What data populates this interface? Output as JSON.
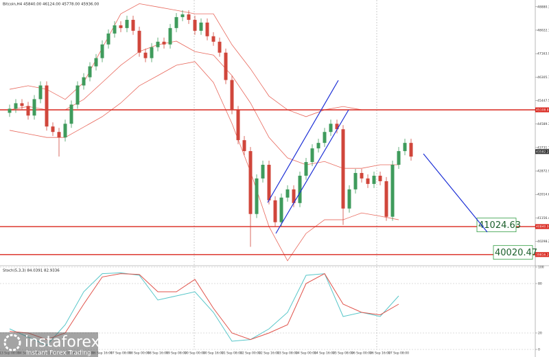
{
  "chart_data": [
    {
      "type": "candlestick",
      "title": "Bitcoin,H4 45840.00 46124.00 45778.00 45936.00",
      "categories": [
        "13 Sep 08:00",
        null,
        null,
        "14 Sep 00:00",
        null,
        null,
        "14 Sep 16:00",
        null,
        null,
        "15 Sep 08:00",
        null,
        null,
        "16 Sep 00:00",
        null,
        null,
        "16 Sep 16:00",
        null,
        null,
        "17 Sep 08:00",
        null,
        null,
        "18 Sep 00:00",
        null,
        null,
        "18 Sep 16:00",
        null,
        null,
        "19 Sep 08:00",
        null,
        null,
        "20 Sep 00:00",
        null,
        null,
        "20 Sep 16:00",
        null,
        null,
        "21 Sep 08:00",
        null,
        null,
        "22 Sep 00:00",
        null,
        null,
        "22 Sep 16:00",
        null,
        null,
        "23 Sep 08:00",
        null,
        null,
        "24 Sep 00:00",
        null,
        null,
        "24 Sep 16:00",
        null,
        null,
        "25 Sep 08:00",
        null,
        null,
        "26 Sep 00:00",
        null,
        null,
        "26 Sep 16:00",
        null,
        null,
        "27 Sep 08:00",
        null,
        null
      ],
      "open": [
        45000,
        45150,
        45350,
        45250,
        44900,
        45500,
        46000,
        44500,
        44300,
        44100,
        44600,
        45300,
        46000,
        46300,
        46700,
        47000,
        47500,
        47900,
        48200,
        48100,
        48400,
        48000,
        47200,
        47000,
        47400,
        47600,
        47500,
        48100,
        48500,
        48600,
        48400,
        48000,
        48300,
        47800,
        47600,
        47200,
        46200,
        45100,
        44000,
        43600,
        41300,
        42600,
        43100,
        41800,
        41000,
        41900,
        42200,
        41700,
        42700,
        43200,
        43700,
        43900,
        44300,
        44600,
        44400,
        41500,
        42200,
        42800,
        42600,
        42400,
        42700,
        42500,
        41200,
        43100,
        43600,
        43900
      ],
      "high": [
        45300,
        45500,
        45500,
        45400,
        45650,
        46150,
        46150,
        44650,
        44450,
        44750,
        45450,
        46150,
        46450,
        46850,
        47150,
        47650,
        48050,
        48350,
        48350,
        48550,
        48550,
        48150,
        47350,
        47550,
        47750,
        47750,
        48250,
        48650,
        48750,
        48750,
        48550,
        48450,
        48450,
        47950,
        47750,
        47350,
        46350,
        45250,
        44150,
        43750,
        42750,
        43250,
        43250,
        41950,
        42050,
        42350,
        42350,
        42850,
        43350,
        43850,
        44050,
        44450,
        44750,
        44750,
        44550,
        42350,
        42950,
        42950,
        42750,
        42850,
        42850,
        42650,
        43250,
        43750,
        44050,
        44050
      ],
      "low": [
        44850,
        45000,
        45100,
        44750,
        44750,
        45350,
        44350,
        44150,
        43400,
        43950,
        44450,
        45150,
        45850,
        46150,
        46550,
        46850,
        47350,
        47750,
        47950,
        47950,
        47850,
        47050,
        46850,
        46850,
        47250,
        47350,
        47350,
        47950,
        48350,
        48250,
        47850,
        47850,
        47650,
        47450,
        47050,
        46050,
        44950,
        43850,
        43450,
        40100,
        41150,
        42450,
        41650,
        40850,
        40850,
        41750,
        41550,
        41550,
        42550,
        43050,
        43550,
        43750,
        44150,
        44250,
        40900,
        41350,
        42050,
        42450,
        42250,
        42250,
        42350,
        41050,
        41050,
        42950,
        43450,
        43250
      ],
      "close": [
        45150,
        45350,
        45250,
        44900,
        45500,
        46000,
        44500,
        44300,
        44100,
        44600,
        45300,
        46000,
        46300,
        46700,
        47000,
        47500,
        47900,
        48200,
        48100,
        48400,
        48000,
        47200,
        47000,
        47400,
        47600,
        47500,
        48100,
        48500,
        48600,
        48400,
        48000,
        48300,
        47800,
        47600,
        47200,
        46200,
        45100,
        44000,
        43600,
        41300,
        42600,
        43100,
        41800,
        41000,
        41900,
        42200,
        41700,
        42700,
        43200,
        43700,
        43900,
        44300,
        44600,
        44400,
        41500,
        42200,
        42800,
        42600,
        42400,
        42700,
        42500,
        41200,
        43100,
        43600,
        43900,
        43400
      ],
      "up_color": "#3f9b5c",
      "down_color": "#d0463b",
      "ylim": [
        39460,
        49000
      ],
      "yticks": [
        {
          "value": 48880.37,
          "label": "48880.37"
        },
        {
          "value": 48022.16,
          "label": "48022.16"
        },
        {
          "value": 47163.95,
          "label": "47163.95"
        },
        {
          "value": 46305.74,
          "label": "46305.74"
        },
        {
          "value": 45447.53,
          "label": "45447.53"
        },
        {
          "value": 44589.32,
          "label": "44589.32"
        },
        {
          "value": 43731.11,
          "label": "43731.11"
        },
        {
          "value": 42872.9,
          "label": "42872.90"
        },
        {
          "value": 42014.69,
          "label": "42014.69"
        },
        {
          "value": 41156.48,
          "label": "41156.48"
        },
        {
          "value": 40298.27,
          "label": "40298.27"
        }
      ],
      "overlay_x": [
        0,
        3,
        6,
        9,
        12,
        15,
        18,
        21,
        24,
        27,
        30,
        33,
        36,
        39,
        42,
        45,
        48,
        51,
        54,
        57,
        60,
        63
      ],
      "overlays": [
        {
          "color": "#e8675b",
          "values": [
            45860,
            45990,
            45860,
            45490,
            46110,
            47370,
            48620,
            48990,
            48870,
            48750,
            48620,
            48620,
            47490,
            46610,
            45610,
            45110,
            44860,
            45110,
            45230,
            45110,
            45110,
            45110
          ]
        },
        {
          "color": "#e8675b",
          "values": [
            45110,
            45230,
            45110,
            45110,
            45490,
            46110,
            46740,
            47240,
            47490,
            47620,
            47240,
            47110,
            46360,
            45360,
            44100,
            43350,
            43100,
            43220,
            42970,
            42970,
            43100,
            43100
          ]
        },
        {
          "color": "#e8675b",
          "values": [
            44360,
            44230,
            44100,
            44100,
            44480,
            44860,
            45360,
            45990,
            46360,
            46740,
            46870,
            46110,
            44610,
            42850,
            40840,
            39590,
            40590,
            41090,
            41090,
            41340,
            41220,
            41090
          ]
        }
      ],
      "levels": [
        {
          "value": 45108.82,
          "label": "45108.82"
        },
        {
          "value": 40840.0,
          "label": "40840.00"
        },
        {
          "value": 39816.26,
          "label": "39816.26"
        }
      ],
      "level_color": "#d9251c",
      "last_price": 43582.27,
      "targets": [
        41024.63,
        40020.47
      ]
    },
    {
      "type": "line",
      "title": "Stoch(5,3,3) 84.0391 82.9336",
      "x": [
        0,
        3,
        6,
        9,
        12,
        15,
        18,
        21,
        24,
        27,
        30,
        33,
        36,
        39,
        42,
        45,
        48,
        51,
        54,
        57,
        60,
        63
      ],
      "series": [
        {
          "color": "#56c6c9",
          "values": [
            25,
            15,
            5,
            30,
            70,
            92,
            93,
            90,
            60,
            65,
            70,
            45,
            10,
            12,
            25,
            45,
            90,
            92,
            40,
            45,
            40,
            65
          ]
        },
        {
          "color": "#e0524a",
          "values": [
            22,
            20,
            12,
            20,
            55,
            88,
            92,
            91,
            70,
            70,
            85,
            50,
            20,
            12,
            20,
            30,
            80,
            92,
            55,
            45,
            42,
            55
          ]
        }
      ],
      "ylim": [
        0,
        100
      ],
      "yticks": [
        100,
        80,
        20,
        0
      ]
    }
  ],
  "brand": {
    "name": "instaforex",
    "tagline": "Instant Forex Trading"
  }
}
